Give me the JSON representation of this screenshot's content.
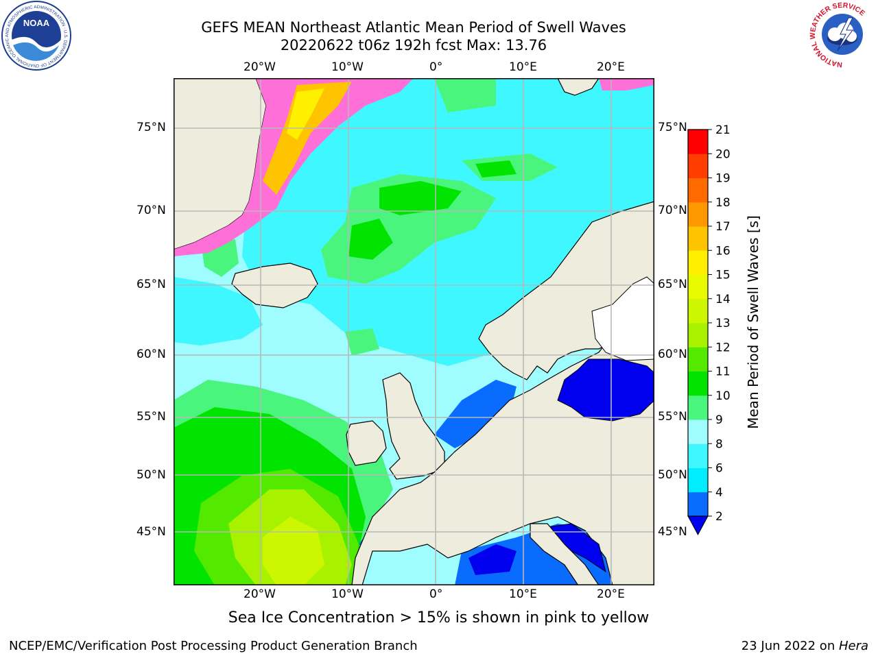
{
  "title": {
    "line1": "GEFS MEAN Northeast Atlantic Mean Period of Swell Waves",
    "line2": "20220622 t06z 192h fcst   Max: 13.76"
  },
  "logos": {
    "left": {
      "name": "NOAA",
      "text": "NOAA",
      "ring_text": "NATIONAL OCEANIC AND ATMOSPHERIC ADMINISTRATION · U.S. DEPARTMENT OF COMMERCE"
    },
    "right": {
      "name": "National Weather Service",
      "ring_text": "NATIONAL WEATHER SERVICE"
    }
  },
  "map": {
    "projection": "lat-lon",
    "lon_range": [
      -30,
      25
    ],
    "lat_range": [
      41,
      78
    ],
    "lon_ticks": [
      "20°W",
      "10°W",
      "0°",
      "10°E",
      "20°E"
    ],
    "lat_ticks": [
      "75°N",
      "70°N",
      "65°N",
      "60°N",
      "55°N",
      "50°N",
      "45°N"
    ],
    "gridlines": true,
    "colors": {
      "land": "#eeecdc",
      "ocean_default": "#9ffcff",
      "coast": "#000000",
      "grid": "#b8b8b8"
    }
  },
  "colorbar": {
    "title": "Mean Period of Swell Waves [s]",
    "levels": [
      "2",
      "4",
      "6",
      "8",
      "9",
      "10",
      "11",
      "12",
      "13",
      "14",
      "15",
      "16",
      "17",
      "18",
      "19",
      "20",
      "21"
    ],
    "colors": [
      "#0000ee",
      "#0a6cff",
      "#00ecff",
      "#3ff8ff",
      "#9ffcff",
      "#4af57d",
      "#00e400",
      "#53ea00",
      "#a8f200",
      "#ccf700",
      "#e8f900",
      "#fff000",
      "#ffc400",
      "#ff9800",
      "#ff6a00",
      "#ff3d00",
      "#ff0000"
    ],
    "extend_min_color": "#0000ee"
  },
  "sea_ice_note": "Sea Ice Concentration > 15% is shown in pink to yellow",
  "footer": {
    "left": "NCEP/EMC/Verification Post Processing Product Generation Branch",
    "right_date": "23 Jun 2022 on ",
    "right_host": "Hera"
  }
}
